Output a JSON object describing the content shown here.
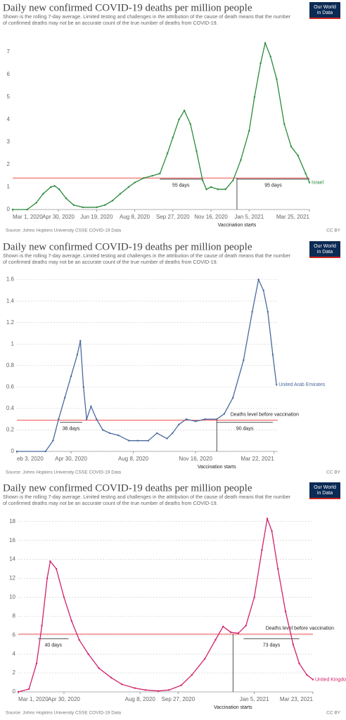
{
  "chart_data": [
    {
      "type": "line",
      "title": "Daily new confirmed COVID-19 deaths per million people",
      "subtitle": [
        "Shown is the rolling 7-day average. Limited testing and challenges in the attribution of the cause of death means that the number",
        "of confirmed deaths may not be an accurate count of the true number of deaths from COVID-19."
      ],
      "logo": [
        "Our World",
        "in Data"
      ],
      "source": "Source: Johns Hopkins University CSSE COVID-19 Data",
      "license": "CC BY",
      "x": [
        "2020-03-01",
        "2020-03-20",
        "2020-04-01",
        "2020-04-10",
        "2020-04-20",
        "2020-04-25",
        "2020-05-01",
        "2020-05-10",
        "2020-05-20",
        "2020-06-01",
        "2020-06-19",
        "2020-06-30",
        "2020-07-10",
        "2020-07-20",
        "2020-07-31",
        "2020-08-08",
        "2020-08-20",
        "2020-08-31",
        "2020-09-10",
        "2020-09-20",
        "2020-09-27",
        "2020-10-05",
        "2020-10-12",
        "2020-10-20",
        "2020-10-28",
        "2020-11-05",
        "2020-11-10",
        "2020-11-16",
        "2020-11-25",
        "2020-12-05",
        "2020-12-15",
        "2020-12-25",
        "2021-01-05",
        "2021-01-12",
        "2021-01-20",
        "2021-01-26",
        "2021-02-02",
        "2021-02-10",
        "2021-02-20",
        "2021-03-01",
        "2021-03-10",
        "2021-03-20",
        "2021-03-25"
      ],
      "series": [
        {
          "name": "Israel",
          "color": "#2a8a3b",
          "values": [
            0,
            0,
            0.3,
            0.7,
            1.0,
            1.05,
            0.9,
            0.5,
            0.2,
            0.1,
            0.1,
            0.2,
            0.4,
            0.7,
            1.0,
            1.2,
            1.4,
            1.5,
            1.6,
            2.5,
            3.2,
            4.0,
            4.4,
            3.8,
            2.6,
            1.3,
            0.9,
            1.0,
            0.9,
            0.9,
            1.3,
            2.2,
            3.5,
            5.0,
            6.5,
            7.4,
            6.8,
            5.8,
            3.8,
            2.8,
            2.4,
            1.6,
            1.2
          ]
        }
      ],
      "xlim": [
        "2020-03-01",
        "2021-03-25"
      ],
      "ylim": [
        0,
        7.5
      ],
      "xticks": [
        {
          "value": "2020-03-01",
          "label": "Mar 1, 2020"
        },
        {
          "value": "2020-04-30",
          "label": "Apr 30, 2020"
        },
        {
          "value": "2020-06-19",
          "label": "Jun 19, 2020"
        },
        {
          "value": "2020-08-08",
          "label": "Aug 8, 2020"
        },
        {
          "value": "2020-09-27",
          "label": "Sep 27, 2020"
        },
        {
          "value": "2020-11-16",
          "label": "Nov 16, 2020"
        },
        {
          "value": "2021-01-05",
          "label": "Jan 5, 2021"
        },
        {
          "value": "2021-03-25",
          "label": "Mar 25, 2021"
        }
      ],
      "yticks": [
        0,
        1,
        2,
        3,
        4,
        5,
        6,
        7
      ],
      "grid": false,
      "reference": {
        "value": 1.4
      },
      "vaccination": {
        "label": "Vaccination starts",
        "x": "2020-12-20"
      },
      "spans": [
        {
          "label": "55 days",
          "start": "2020-09-10",
          "end": "2020-11-04",
          "level": 1.35
        },
        {
          "label": "95 days",
          "start": "2020-12-20",
          "end": "2021-03-25",
          "level": 1.35
        }
      ]
    },
    {
      "type": "line",
      "title": "Daily new confirmed COVID-19 deaths per million people",
      "subtitle": [
        "Shown is the rolling 7-day average. Limited testing and challenges in the attribution of the cause of death means that the number",
        "of confirmed deaths may not be an accurate count of the true number of deaths from COVID-19."
      ],
      "logo": [
        "Our World",
        "in Data"
      ],
      "source": "Source: Johns Hopkins University CSSE COVID-19 Data",
      "license": "CC BY",
      "x": [
        "2020-02-03",
        "2020-03-20",
        "2020-04-01",
        "2020-04-10",
        "2020-04-20",
        "2020-04-30",
        "2020-05-10",
        "2020-05-15",
        "2020-05-20",
        "2020-05-25",
        "2020-06-01",
        "2020-06-10",
        "2020-06-20",
        "2020-07-01",
        "2020-07-15",
        "2020-08-01",
        "2020-08-15",
        "2020-09-01",
        "2020-09-15",
        "2020-10-01",
        "2020-10-10",
        "2020-10-20",
        "2020-11-01",
        "2020-11-16",
        "2020-12-01",
        "2020-12-20",
        "2021-01-01",
        "2021-01-15",
        "2021-02-01",
        "2021-02-15",
        "2021-02-25",
        "2021-03-05",
        "2021-03-12",
        "2021-03-20",
        "2021-03-26"
      ],
      "series": [
        {
          "name": "United Arab Emirates",
          "color": "#4a6a9e",
          "values": [
            0,
            0,
            0.1,
            0.3,
            0.5,
            0.7,
            0.9,
            1.03,
            0.6,
            0.3,
            0.42,
            0.3,
            0.2,
            0.17,
            0.15,
            0.1,
            0.1,
            0.1,
            0.17,
            0.12,
            0.17,
            0.25,
            0.3,
            0.28,
            0.3,
            0.3,
            0.35,
            0.5,
            0.85,
            1.3,
            1.6,
            1.5,
            1.3,
            0.9,
            0.62
          ]
        }
      ],
      "xlim": [
        "2020-02-03",
        "2021-03-28"
      ],
      "ylim": [
        0,
        1.65
      ],
      "xticks": [
        {
          "value": "2020-02-03",
          "label": "eb 3, 2020"
        },
        {
          "value": "2020-04-30",
          "label": "Apr 30, 2020"
        },
        {
          "value": "2020-08-08",
          "label": "Aug 8, 2020"
        },
        {
          "value": "2020-11-16",
          "label": "Nov 16, 2020"
        },
        {
          "value": "2021-03-22",
          "label": "Mar 22, 2021"
        }
      ],
      "yticks": [
        0,
        0.2,
        0.4,
        0.6,
        0.8,
        1,
        1.2,
        1.4,
        1.6
      ],
      "grid": true,
      "reference": {
        "value": 0.29,
        "label": "Deaths level before vaccination"
      },
      "vaccination": {
        "label": "Vaccination starts",
        "x": "2020-12-20"
      },
      "spans": [
        {
          "label": "36 days",
          "start": "2020-04-12",
          "end": "2020-05-18",
          "level": 0.27
        },
        {
          "label": "90 days",
          "start": "2020-12-20",
          "end": "2021-03-20",
          "level": 0.27
        }
      ]
    },
    {
      "type": "line",
      "title": "Daily new confirmed COVID-19 deaths per million people",
      "subtitle": [
        "Shown is the rolling 7-day average. Limited testing and challenges in the attribution of the cause of death means that the number",
        "of confirmed deaths may not be an accurate count of the true number of deaths from COVID-19."
      ],
      "logo": [
        "Our World",
        "in Data"
      ],
      "source": "Source: Johns Hopkins University CSSE COVID-19 Data",
      "license": "CC BY",
      "x": [
        "2020-03-01",
        "2020-03-15",
        "2020-03-25",
        "2020-04-01",
        "2020-04-08",
        "2020-04-12",
        "2020-04-20",
        "2020-04-30",
        "2020-05-10",
        "2020-05-20",
        "2020-06-01",
        "2020-06-15",
        "2020-07-01",
        "2020-07-15",
        "2020-08-01",
        "2020-08-15",
        "2020-09-01",
        "2020-09-15",
        "2020-10-01",
        "2020-10-15",
        "2020-11-01",
        "2020-11-15",
        "2020-11-25",
        "2020-12-05",
        "2020-12-15",
        "2020-12-25",
        "2021-01-05",
        "2021-01-15",
        "2021-01-22",
        "2021-01-28",
        "2021-02-05",
        "2021-02-15",
        "2021-02-25",
        "2021-03-05",
        "2021-03-15",
        "2021-03-23"
      ],
      "series": [
        {
          "name": "United Kingdom",
          "color": "#d0226b",
          "values": [
            0,
            0.3,
            3,
            7,
            12,
            13.8,
            13,
            10,
            7.5,
            5.5,
            4,
            2.5,
            1.5,
            0.8,
            0.4,
            0.2,
            0.1,
            0.2,
            0.7,
            1.8,
            3.5,
            5.5,
            6.9,
            6.3,
            6.2,
            7,
            10,
            15,
            18.3,
            17,
            13,
            8.5,
            5,
            3,
            1.8,
            1.3
          ]
        }
      ],
      "xlim": [
        "2020-03-01",
        "2021-03-23"
      ],
      "ylim": [
        0,
        18.5
      ],
      "xticks": [
        {
          "value": "2020-03-01",
          "label": "Mar 1, 2020"
        },
        {
          "value": "2020-04-30",
          "label": "Apr 30, 2020"
        },
        {
          "value": "2020-08-08",
          "label": "Aug 8, 2020"
        },
        {
          "value": "2020-09-27",
          "label": "Sep 27, 2020"
        },
        {
          "value": "2021-01-05",
          "label": "Jan 5, 2021"
        },
        {
          "value": "2021-03-23",
          "label": "Mar 23, 2021"
        }
      ],
      "yticks": [
        0,
        2,
        4,
        6,
        8,
        10,
        12,
        14,
        16,
        18
      ],
      "grid": true,
      "reference": {
        "value": 6.1,
        "label": "Deaths level before vaccination"
      },
      "vaccination": {
        "label": "Vaccination starts",
        "x": "2020-12-08"
      },
      "spans": [
        {
          "label": "40 days",
          "start": "2020-03-27",
          "end": "2020-05-06",
          "level": 5.6
        },
        {
          "label": "73 days",
          "start": "2020-12-22",
          "end": "2021-03-05",
          "level": 5.6
        }
      ]
    }
  ]
}
